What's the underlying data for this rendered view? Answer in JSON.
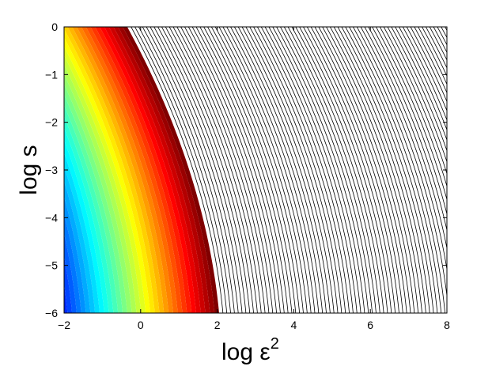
{
  "chart_data": {
    "type": "heatmap",
    "title": "",
    "xlabel_base": "log ε",
    "xlabel_exponent": "2",
    "ylabel": "log s",
    "xlim": [
      -2,
      8
    ],
    "ylim": [
      -6,
      0
    ],
    "xticks": [
      -2,
      0,
      2,
      4,
      6,
      8
    ],
    "yticks": [
      0,
      -1,
      -2,
      -3,
      -4,
      -5,
      -6
    ],
    "xtick_labels": [
      "−2",
      "0",
      "2",
      "4",
      "6",
      "8"
    ],
    "ytick_labels": [
      "0",
      "−1",
      "−2",
      "−3",
      "−4",
      "−5",
      "−6"
    ],
    "colormap": "jet",
    "boundary": {
      "at_top_x": -0.35,
      "at_bottom_x": 2.05,
      "curvature": 0.7
    },
    "contour_lines": {
      "spacing_x": 0.1,
      "color": "#000000",
      "extend_to_x": 8
    },
    "grid": false,
    "legend": "none",
    "colors": {
      "low": "#0a3cf0",
      "mid": "#00e8ff",
      "high": "#ffe000",
      "peak": "#7a0000",
      "line": "#000000",
      "background": "#ffffff"
    }
  }
}
